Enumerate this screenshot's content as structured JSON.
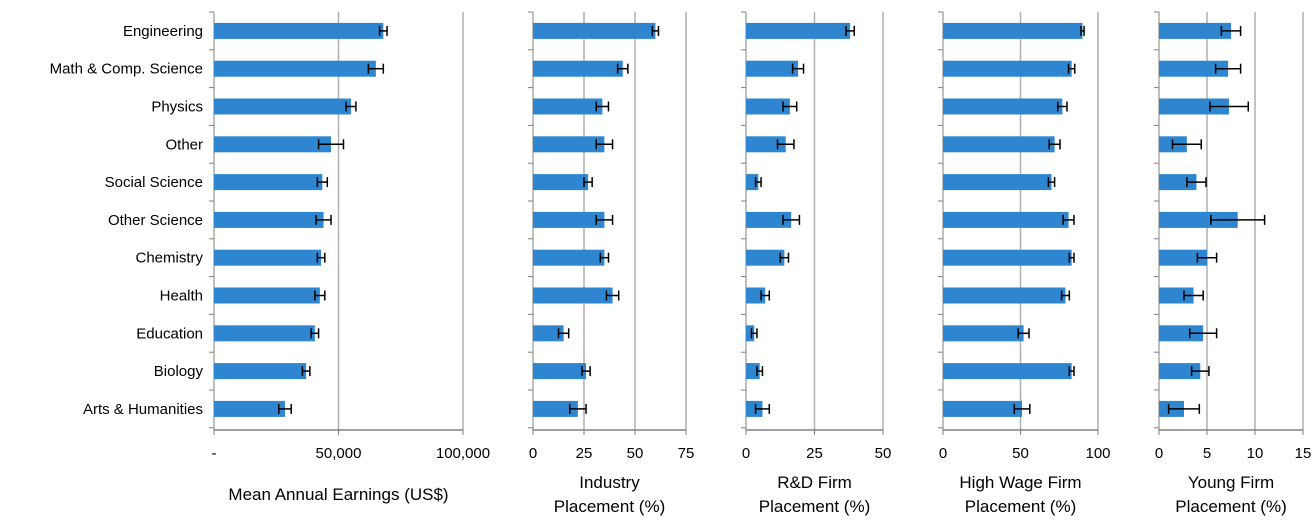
{
  "chart_data": {
    "type": "bar",
    "orientation": "horizontal",
    "grid": true,
    "bar_color": "#2f86d0",
    "gridline_color": "#b0b0b0",
    "errorbar_color": "#000000",
    "categories": [
      "Engineering",
      "Math & Comp. Science",
      "Physics",
      "Other",
      "Social Science",
      "Other Science",
      "Chemistry",
      "Health",
      "Education",
      "Biology",
      "Arts & Humanities"
    ],
    "panels": [
      {
        "xlabel": [
          "Mean Annual Earnings (US$)"
        ],
        "xlim": [
          0,
          100000
        ],
        "ticks": [
          0,
          50000,
          100000
        ],
        "tick_labels": [
          "-",
          "50,000",
          "100,000"
        ],
        "values": [
          68000,
          65000,
          55000,
          47000,
          43500,
          44000,
          43000,
          42500,
          40500,
          37000,
          28500
        ],
        "errors": [
          1500,
          3000,
          2000,
          5000,
          2000,
          3000,
          1500,
          2000,
          1500,
          1500,
          2500
        ]
      },
      {
        "xlabel": [
          "Industry",
          "Placement (%)"
        ],
        "xlim": [
          0,
          75
        ],
        "ticks": [
          0,
          25,
          50,
          75
        ],
        "tick_labels": [
          "0",
          "25",
          "50",
          "75"
        ],
        "values": [
          60,
          44,
          34,
          35,
          27,
          35,
          35,
          39,
          15,
          26,
          22
        ],
        "errors": [
          1.5,
          2.5,
          3,
          4,
          2,
          4,
          2,
          3,
          2.5,
          2,
          4
        ]
      },
      {
        "xlabel": [
          "R&D Firm",
          "Placement (%)"
        ],
        "xlim": [
          0,
          50
        ],
        "ticks": [
          0,
          25,
          50
        ],
        "tick_labels": [
          "0",
          "25",
          "50"
        ],
        "values": [
          38,
          19,
          16,
          14.5,
          4.5,
          16.5,
          14,
          7,
          3,
          5,
          6
        ],
        "errors": [
          1.5,
          2,
          2.5,
          3,
          1,
          3,
          1.5,
          1.5,
          1,
          1,
          2.5
        ]
      },
      {
        "xlabel": [
          "High Wage Firm",
          "Placement (%)"
        ],
        "xlim": [
          0,
          100
        ],
        "ticks": [
          0,
          50,
          100
        ],
        "tick_labels": [
          "0",
          "50",
          "100"
        ],
        "values": [
          90,
          83,
          77,
          72,
          70,
          81,
          83,
          79,
          52,
          83,
          51
        ],
        "errors": [
          1,
          2,
          3,
          3.5,
          2,
          3.5,
          1.5,
          2.5,
          3.5,
          1.5,
          5
        ]
      },
      {
        "xlabel": [
          "Young Firm",
          "Placement (%)"
        ],
        "xlim": [
          0,
          15
        ],
        "ticks": [
          0,
          5,
          10,
          15
        ],
        "tick_labels": [
          "0",
          "5",
          "10",
          "15"
        ],
        "values": [
          7.5,
          7.2,
          7.3,
          2.9,
          3.9,
          8.2,
          5.0,
          3.6,
          4.6,
          4.3,
          2.6
        ],
        "errors": [
          1,
          1.3,
          2,
          1.5,
          1,
          2.8,
          1,
          1,
          1.4,
          0.9,
          1.6
        ]
      }
    ]
  }
}
